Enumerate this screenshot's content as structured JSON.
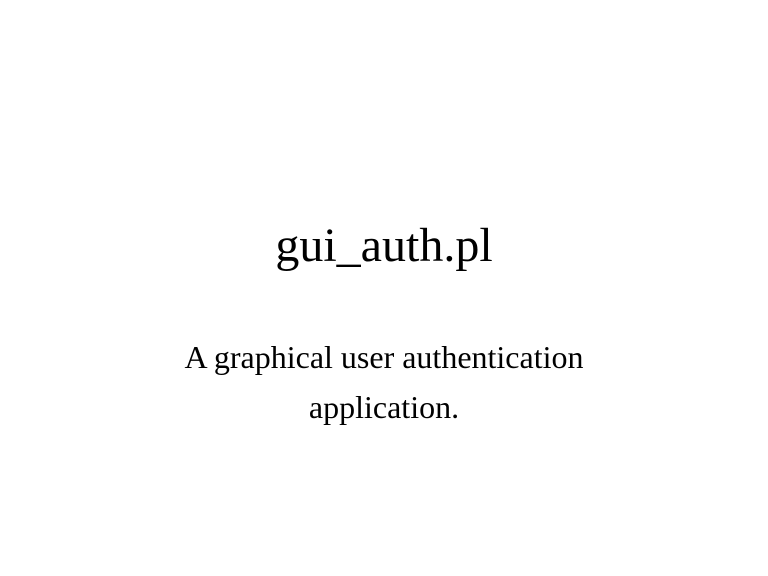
{
  "slide": {
    "title": "gui_auth.pl",
    "subtitle": "A graphical user authentication application."
  }
}
